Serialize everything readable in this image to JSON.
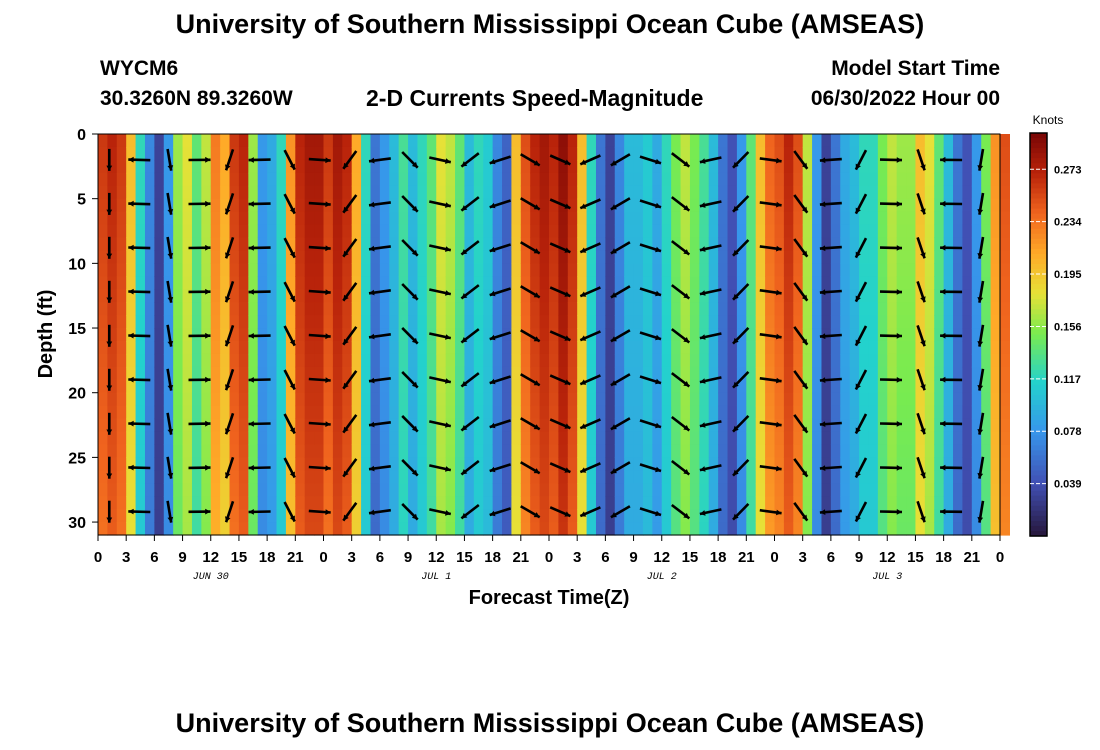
{
  "page": {
    "title": "University of Southern Mississippi Ocean Cube (AMSEAS)",
    "footer_title": "University of Southern Mississippi Ocean Cube (AMSEAS)",
    "station_id": "WYCM6",
    "station_coords": "30.3260N  89.3260W",
    "plot_title": "2-D Currents Speed-Magnitude",
    "model_start_label": "Model Start Time",
    "model_start_value": "06/30/2022 Hour 00"
  },
  "chart_data": {
    "type": "heatmap",
    "title": "2-D Currents Speed-Magnitude",
    "xlabel": "Forecast Time(Z)",
    "ylabel": "Depth (ft)",
    "x_tick_labels": [
      "0",
      "3",
      "6",
      "9",
      "12",
      "15",
      "18",
      "21",
      "0",
      "3",
      "6",
      "9",
      "12",
      "15",
      "18",
      "21",
      "0",
      "3",
      "6",
      "9",
      "12",
      "15",
      "18",
      "21",
      "0",
      "3",
      "6",
      "9",
      "12",
      "15",
      "18",
      "21",
      "0"
    ],
    "x_range_hours": [
      0,
      96
    ],
    "day_labels": [
      {
        "label": "JUN 30",
        "hour": 12
      },
      {
        "label": "JUL 1",
        "hour": 36
      },
      {
        "label": "JUL 2",
        "hour": 60
      },
      {
        "label": "JUL 3",
        "hour": 84
      }
    ],
    "y_ticks": [
      0,
      5,
      10,
      15,
      20,
      25,
      30
    ],
    "y_range_ft": [
      0,
      31
    ],
    "colorbar": {
      "label": "Knots",
      "min": 0.0,
      "max": 0.3,
      "ticks": [
        "0.273",
        "0.234",
        "0.195",
        "0.156",
        "0.117",
        "0.078",
        "0.039"
      ],
      "tick_values": [
        0.273,
        0.234,
        0.195,
        0.156,
        0.117,
        0.078,
        0.039
      ]
    },
    "speed_by_hour_knots": [
      0.26,
      0.27,
      0.26,
      0.2,
      0.12,
      0.07,
      0.03,
      0.08,
      0.16,
      0.18,
      0.14,
      0.17,
      0.23,
      0.21,
      0.26,
      0.27,
      0.16,
      0.08,
      0.09,
      0.12,
      0.22,
      0.27,
      0.28,
      0.28,
      0.26,
      0.28,
      0.27,
      0.21,
      0.12,
      0.06,
      0.08,
      0.1,
      0.13,
      0.1,
      0.12,
      0.14,
      0.18,
      0.17,
      0.14,
      0.1,
      0.12,
      0.11,
      0.07,
      0.05,
      0.2,
      0.25,
      0.27,
      0.28,
      0.27,
      0.29,
      0.27,
      0.2,
      0.12,
      0.06,
      0.03,
      0.07,
      0.1,
      0.1,
      0.11,
      0.09,
      0.12,
      0.15,
      0.17,
      0.15,
      0.13,
      0.1,
      0.06,
      0.04,
      0.08,
      0.14,
      0.2,
      0.24,
      0.25,
      0.27,
      0.25,
      0.17,
      0.08,
      0.03,
      0.06,
      0.09,
      0.1,
      0.12,
      0.12,
      0.15,
      0.17,
      0.16,
      0.16,
      0.2,
      0.18,
      0.14,
      0.1,
      0.06,
      0.04,
      0.08,
      0.15,
      0.22,
      0.25
    ]
  }
}
